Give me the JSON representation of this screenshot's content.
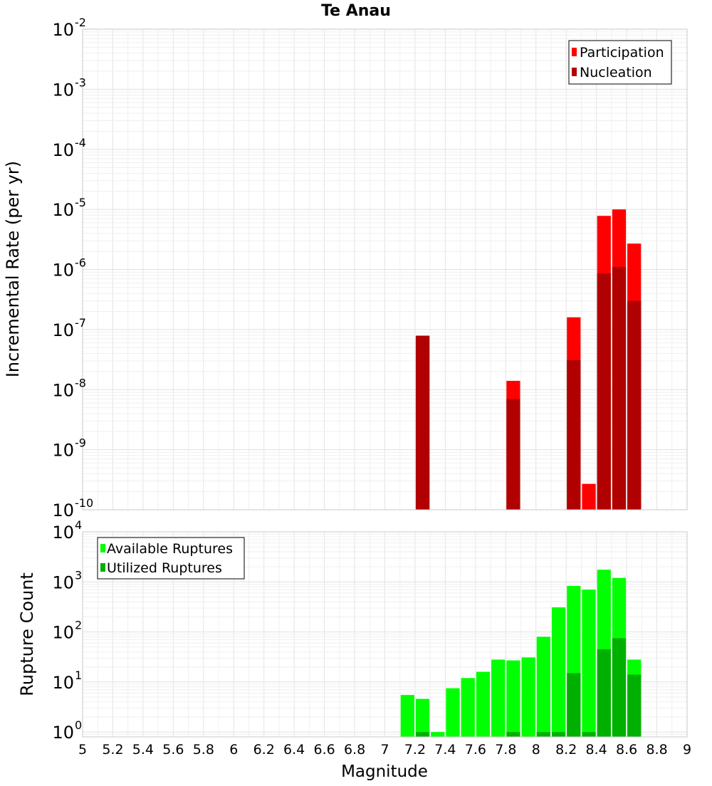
{
  "title": "Te Anau",
  "xlabel": "Magnitude",
  "x_ticks": [
    "5",
    "5.2",
    "5.4",
    "5.6",
    "5.8",
    "6",
    "6.2",
    "6.4",
    "6.6",
    "6.8",
    "7",
    "7.2",
    "7.4",
    "7.6",
    "7.8",
    "8",
    "8.2",
    "8.4",
    "8.6",
    "8.8",
    "9"
  ],
  "chart_data": [
    {
      "type": "bar",
      "title": "Te Anau",
      "xlabel": "Magnitude",
      "ylabel": "Incremental Rate (per yr)",
      "yscale": "log",
      "xlim": [
        5,
        9
      ],
      "ylim": [
        1e-10,
        0.01
      ],
      "grid": true,
      "legend_position": "top-right",
      "y_ticks": [
        {
          "base": "10",
          "exp": "-2"
        },
        {
          "base": "10",
          "exp": "-3"
        },
        {
          "base": "10",
          "exp": "-4"
        },
        {
          "base": "10",
          "exp": "-5"
        },
        {
          "base": "10",
          "exp": "-6"
        },
        {
          "base": "10",
          "exp": "-7"
        },
        {
          "base": "10",
          "exp": "-8"
        },
        {
          "base": "10",
          "exp": "-9"
        },
        {
          "base": "10",
          "exp": "-10"
        }
      ],
      "x": [
        7.25,
        7.85,
        8.25,
        8.35,
        8.45,
        8.55,
        8.65
      ],
      "series": [
        {
          "name": "Participation",
          "color": "#ff0000",
          "values": [
            7.9e-08,
            1.4e-08,
            1.6e-07,
            2.7e-10,
            7.8e-06,
            1e-05,
            2.7e-06
          ]
        },
        {
          "name": "Nucleation",
          "color": "#b00000",
          "values": [
            7.9e-08,
            7e-09,
            3.1e-08,
            1e-10,
            8.6e-07,
            1.1e-06,
            3e-07
          ]
        }
      ]
    },
    {
      "type": "bar",
      "xlabel": "Magnitude",
      "ylabel": "Rupture Count",
      "yscale": "log",
      "xlim": [
        5,
        9
      ],
      "ylim": [
        0.8,
        10000
      ],
      "grid": true,
      "legend_position": "top-left",
      "y_ticks": [
        {
          "base": "10",
          "exp": "4"
        },
        {
          "base": "10",
          "exp": "3"
        },
        {
          "base": "10",
          "exp": "2"
        },
        {
          "base": "10",
          "exp": "1"
        },
        {
          "base": "10",
          "exp": "0"
        }
      ],
      "x": [
        7.15,
        7.25,
        7.35,
        7.45,
        7.55,
        7.65,
        7.75,
        7.85,
        7.95,
        8.05,
        8.15,
        8.25,
        8.35,
        8.45,
        8.55,
        8.65
      ],
      "series": [
        {
          "name": "Available Ruptures",
          "color": "#00ff00",
          "values": [
            5.5,
            4.6,
            1,
            7.5,
            12,
            16,
            28,
            27,
            31,
            80,
            310,
            830,
            700,
            1750,
            1200,
            28
          ]
        },
        {
          "name": "Utilized Ruptures",
          "color": "#00b000",
          "values": [
            0,
            1,
            0,
            0,
            0,
            0,
            0,
            1,
            0,
            1,
            1,
            15,
            1,
            45,
            75,
            14
          ]
        }
      ]
    }
  ]
}
